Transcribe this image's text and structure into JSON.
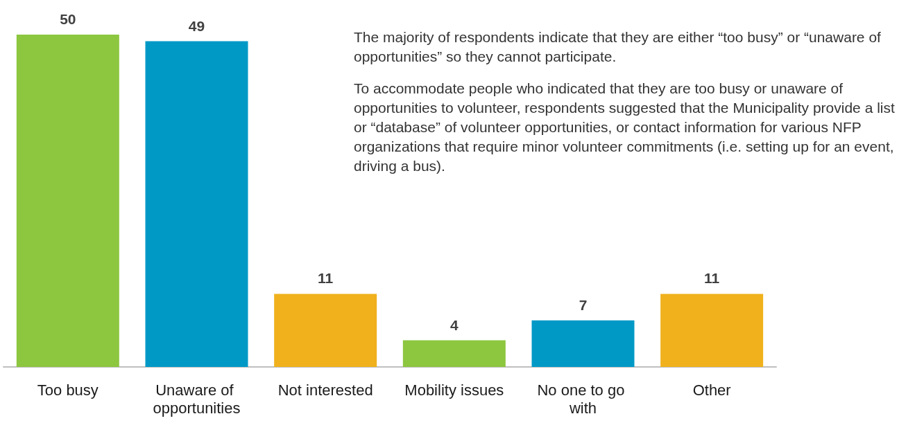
{
  "chart_data": {
    "type": "bar",
    "categories": [
      "Too busy",
      "Unaware of opportunities",
      "Not interested",
      "Mobility issues",
      "No one to go with",
      "Other"
    ],
    "values": [
      50,
      49,
      11,
      4,
      7,
      11
    ],
    "colors": [
      "#8dc63f",
      "#0099c6",
      "#f0b11d",
      "#8dc63f",
      "#0099c6",
      "#f0b11d"
    ],
    "data_labels": true,
    "annotations": [
      "The majority of respondents indicate that they are either “too busy” or “unaware of opportunities” so they cannot participate.",
      "To accommodate people who indicated that they are too busy or unaware of opportunities to volunteer, respondents suggested that the Municipality provide a list or “database” of volunteer opportunities, or contact information for various NFP organizations that require minor volunteer commitments (i.e. setting up for an event, driving a bus)."
    ]
  }
}
